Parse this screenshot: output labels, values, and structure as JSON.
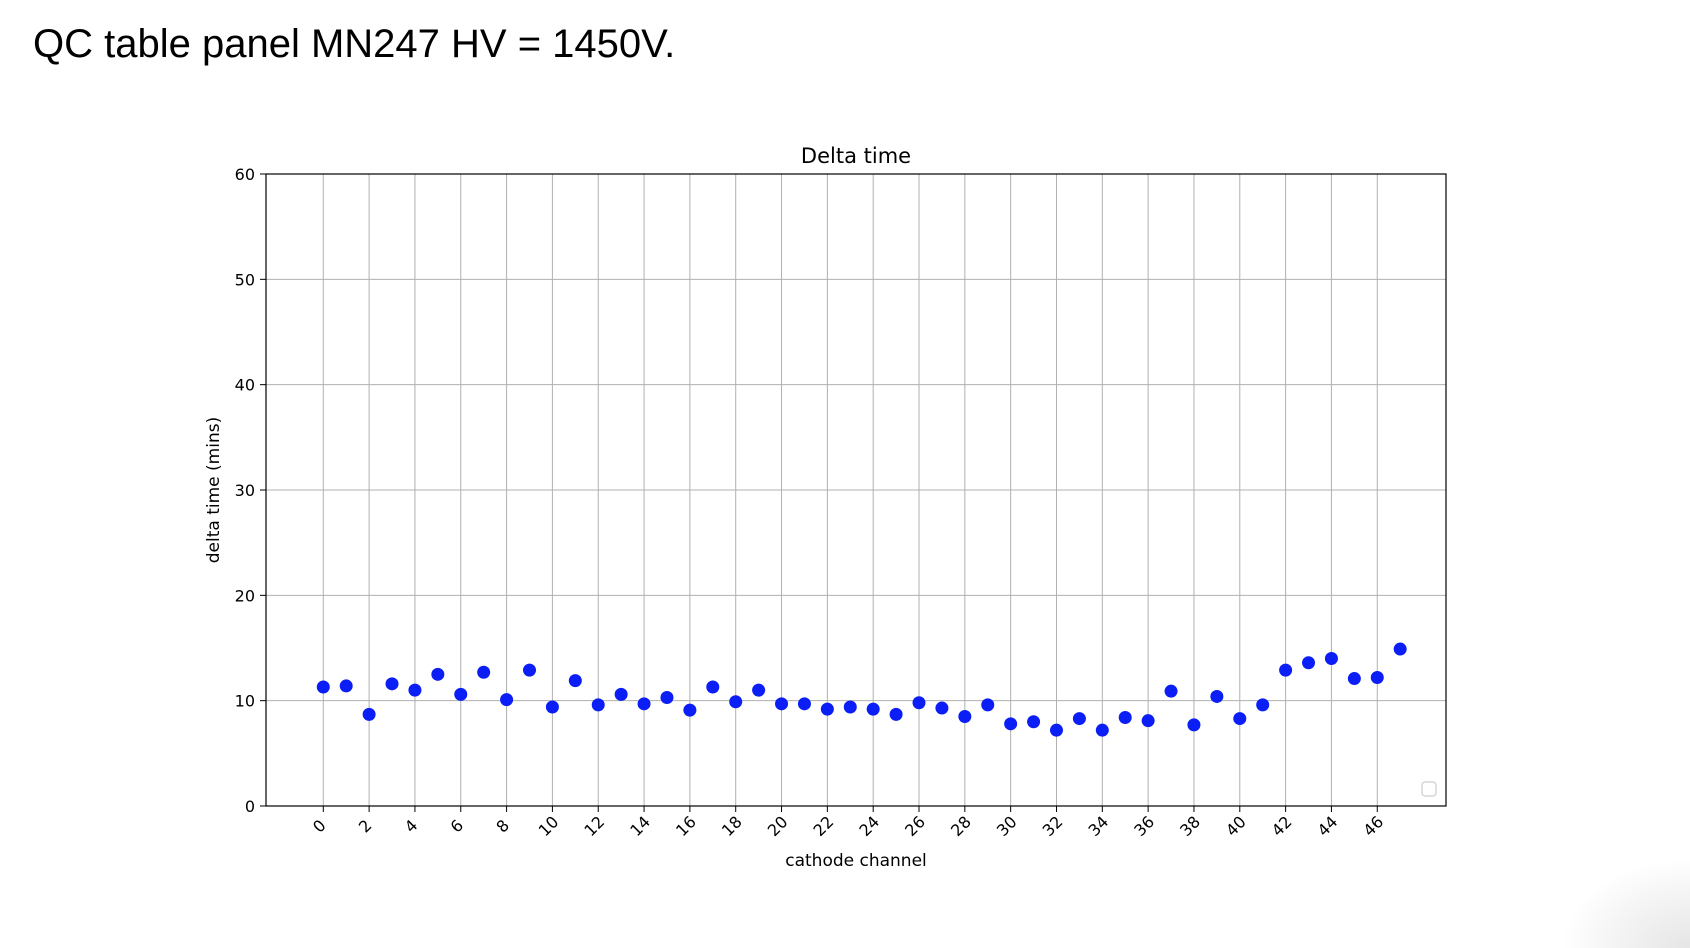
{
  "slide": {
    "title": "QC table panel MN247 HV = 1450V."
  },
  "chart_data": {
    "type": "scatter",
    "title": "Delta time",
    "xlabel": "cathode channel",
    "ylabel": "delta time (mins)",
    "xlim": [
      -2.5,
      49
    ],
    "ylim": [
      0,
      60
    ],
    "xticks": [
      0,
      2,
      4,
      6,
      8,
      10,
      12,
      14,
      16,
      18,
      20,
      22,
      24,
      26,
      28,
      30,
      32,
      34,
      36,
      38,
      40,
      42,
      44,
      46
    ],
    "yticks": [
      0,
      10,
      20,
      30,
      40,
      50,
      60
    ],
    "grid": true,
    "legend": "empty, bottom-right",
    "marker_color": "#0a1ef5",
    "series": [
      {
        "x": [
          0,
          1,
          2,
          3,
          4,
          5,
          6,
          7,
          8,
          9,
          10,
          11,
          12,
          13,
          14,
          15,
          16,
          17,
          18,
          19,
          20,
          21,
          22,
          23,
          24,
          25,
          26,
          27,
          28,
          29,
          30,
          31,
          32,
          33,
          34,
          35,
          36,
          37,
          38,
          39,
          40,
          41,
          42,
          43,
          44,
          45,
          46,
          47
        ],
        "y": [
          11.3,
          11.4,
          8.7,
          11.6,
          11.0,
          12.5,
          10.6,
          12.7,
          10.1,
          12.9,
          9.4,
          11.9,
          9.6,
          10.6,
          9.7,
          10.3,
          9.1,
          11.3,
          9.9,
          11.0,
          9.7,
          9.7,
          9.2,
          9.4,
          9.2,
          8.7,
          9.8,
          9.3,
          8.5,
          9.6,
          7.8,
          8.0,
          7.2,
          8.3,
          7.2,
          8.4,
          8.1,
          10.9,
          7.7,
          10.4,
          8.3,
          9.6,
          12.9,
          13.6,
          14.0,
          12.1,
          12.2,
          14.9
        ]
      }
    ]
  }
}
